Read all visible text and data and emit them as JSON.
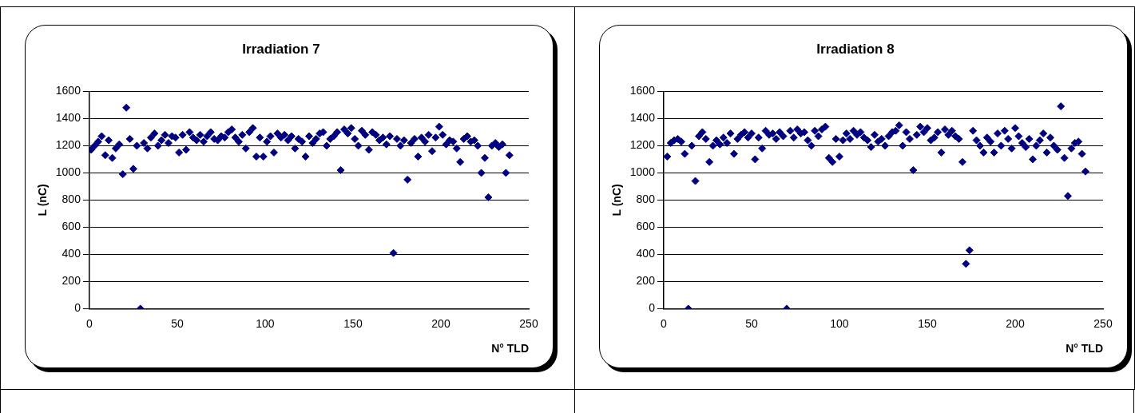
{
  "chart_data": [
    {
      "type": "scatter",
      "title": "Irradiation 7",
      "xlabel": "N° TLD",
      "ylabel": "L (nC)",
      "color": "#000080",
      "marker": "diamond",
      "grid": "y",
      "xlim": [
        0,
        250
      ],
      "xticks": [
        0,
        50,
        100,
        150,
        200,
        250
      ],
      "ylim": [
        0,
        1600
      ],
      "yticks": [
        0,
        200,
        400,
        600,
        800,
        1000,
        1200,
        1400,
        1600
      ],
      "x": [
        1,
        3,
        5,
        7,
        9,
        11,
        13,
        15,
        17,
        19,
        21,
        23,
        25,
        27,
        29,
        31,
        33,
        35,
        37,
        39,
        41,
        43,
        45,
        47,
        49,
        51,
        53,
        55,
        57,
        59,
        61,
        63,
        65,
        67,
        69,
        71,
        73,
        75,
        77,
        79,
        81,
        83,
        85,
        87,
        89,
        91,
        93,
        95,
        97,
        99,
        101,
        103,
        105,
        107,
        109,
        111,
        113,
        115,
        117,
        119,
        121,
        123,
        125,
        127,
        129,
        131,
        133,
        135,
        137,
        139,
        141,
        143,
        145,
        147,
        149,
        151,
        153,
        155,
        157,
        159,
        161,
        163,
        165,
        167,
        169,
        171,
        173,
        175,
        177,
        179,
        181,
        183,
        185,
        187,
        189,
        191,
        193,
        195,
        197,
        199,
        201,
        203,
        205,
        207,
        209,
        211,
        213,
        215,
        217,
        219,
        221,
        223,
        225,
        227,
        229,
        231,
        233,
        235,
        237,
        239
      ],
      "values": [
        1170,
        1200,
        1230,
        1270,
        1130,
        1240,
        1110,
        1180,
        1210,
        990,
        1480,
        1250,
        1030,
        1200,
        0,
        1220,
        1180,
        1260,
        1290,
        1200,
        1240,
        1280,
        1220,
        1270,
        1260,
        1150,
        1280,
        1170,
        1300,
        1260,
        1240,
        1280,
        1230,
        1270,
        1300,
        1250,
        1240,
        1270,
        1260,
        1300,
        1320,
        1260,
        1230,
        1280,
        1180,
        1300,
        1330,
        1120,
        1260,
        1120,
        1230,
        1270,
        1150,
        1290,
        1260,
        1280,
        1240,
        1270,
        1180,
        1250,
        1230,
        1120,
        1270,
        1220,
        1250,
        1290,
        1300,
        1200,
        1250,
        1270,
        1300,
        1020,
        1320,
        1290,
        1330,
        1250,
        1200,
        1310,
        1280,
        1170,
        1300,
        1280,
        1240,
        1260,
        1210,
        1270,
        410,
        1250,
        1200,
        1240,
        950,
        1220,
        1250,
        1120,
        1260,
        1230,
        1280,
        1160,
        1260,
        1340,
        1280,
        1210,
        1240,
        1230,
        1180,
        1080,
        1250,
        1270,
        1230,
        1240,
        1200,
        1000,
        1110,
        820,
        1200,
        1220,
        1190,
        1210,
        1000,
        1130
      ]
    },
    {
      "type": "scatter",
      "title": "Irradiation 8",
      "xlabel": "N° TLD",
      "ylabel": "L (nC)",
      "color": "#000080",
      "marker": "diamond",
      "grid": "y",
      "xlim": [
        0,
        250
      ],
      "xticks": [
        0,
        50,
        100,
        150,
        200,
        250
      ],
      "ylim": [
        0,
        1600
      ],
      "yticks": [
        0,
        200,
        400,
        600,
        800,
        1000,
        1200,
        1400,
        1600
      ],
      "x": [
        2,
        4,
        6,
        8,
        10,
        12,
        14,
        16,
        18,
        20,
        22,
        24,
        26,
        28,
        30,
        32,
        34,
        36,
        38,
        40,
        42,
        44,
        46,
        48,
        50,
        52,
        54,
        56,
        58,
        60,
        62,
        64,
        66,
        68,
        70,
        72,
        74,
        76,
        78,
        80,
        82,
        84,
        86,
        88,
        90,
        92,
        94,
        96,
        98,
        100,
        102,
        104,
        106,
        108,
        110,
        112,
        114,
        116,
        118,
        120,
        122,
        124,
        126,
        128,
        130,
        132,
        134,
        136,
        138,
        140,
        142,
        144,
        146,
        148,
        150,
        152,
        154,
        156,
        158,
        160,
        162,
        164,
        166,
        168,
        170,
        172,
        174,
        176,
        178,
        180,
        182,
        184,
        186,
        188,
        190,
        192,
        194,
        196,
        198,
        200,
        202,
        204,
        206,
        208,
        210,
        212,
        214,
        216,
        218,
        220,
        222,
        224,
        226,
        228,
        230,
        232,
        234,
        236,
        238,
        240
      ],
      "values": [
        1120,
        1220,
        1240,
        1250,
        1230,
        1140,
        0,
        1200,
        940,
        1270,
        1300,
        1250,
        1080,
        1200,
        1240,
        1210,
        1260,
        1220,
        1290,
        1140,
        1250,
        1280,
        1300,
        1260,
        1290,
        1100,
        1260,
        1180,
        1310,
        1280,
        1290,
        1250,
        1300,
        1270,
        0,
        1310,
        1260,
        1320,
        1290,
        1300,
        1240,
        1200,
        1310,
        1270,
        1320,
        1340,
        1110,
        1080,
        1250,
        1120,
        1240,
        1290,
        1250,
        1310,
        1280,
        1300,
        1260,
        1240,
        1190,
        1280,
        1230,
        1250,
        1200,
        1270,
        1300,
        1310,
        1350,
        1200,
        1300,
        1250,
        1020,
        1280,
        1340,
        1300,
        1330,
        1240,
        1260,
        1300,
        1150,
        1320,
        1280,
        1310,
        1270,
        1250,
        1080,
        330,
        430,
        1310,
        1240,
        1200,
        1150,
        1260,
        1230,
        1150,
        1290,
        1200,
        1310,
        1250,
        1180,
        1330,
        1270,
        1220,
        1190,
        1250,
        1100,
        1200,
        1240,
        1290,
        1150,
        1260,
        1200,
        1170,
        1490,
        1110,
        830,
        1180,
        1220,
        1230,
        1140,
        1010
      ]
    }
  ]
}
